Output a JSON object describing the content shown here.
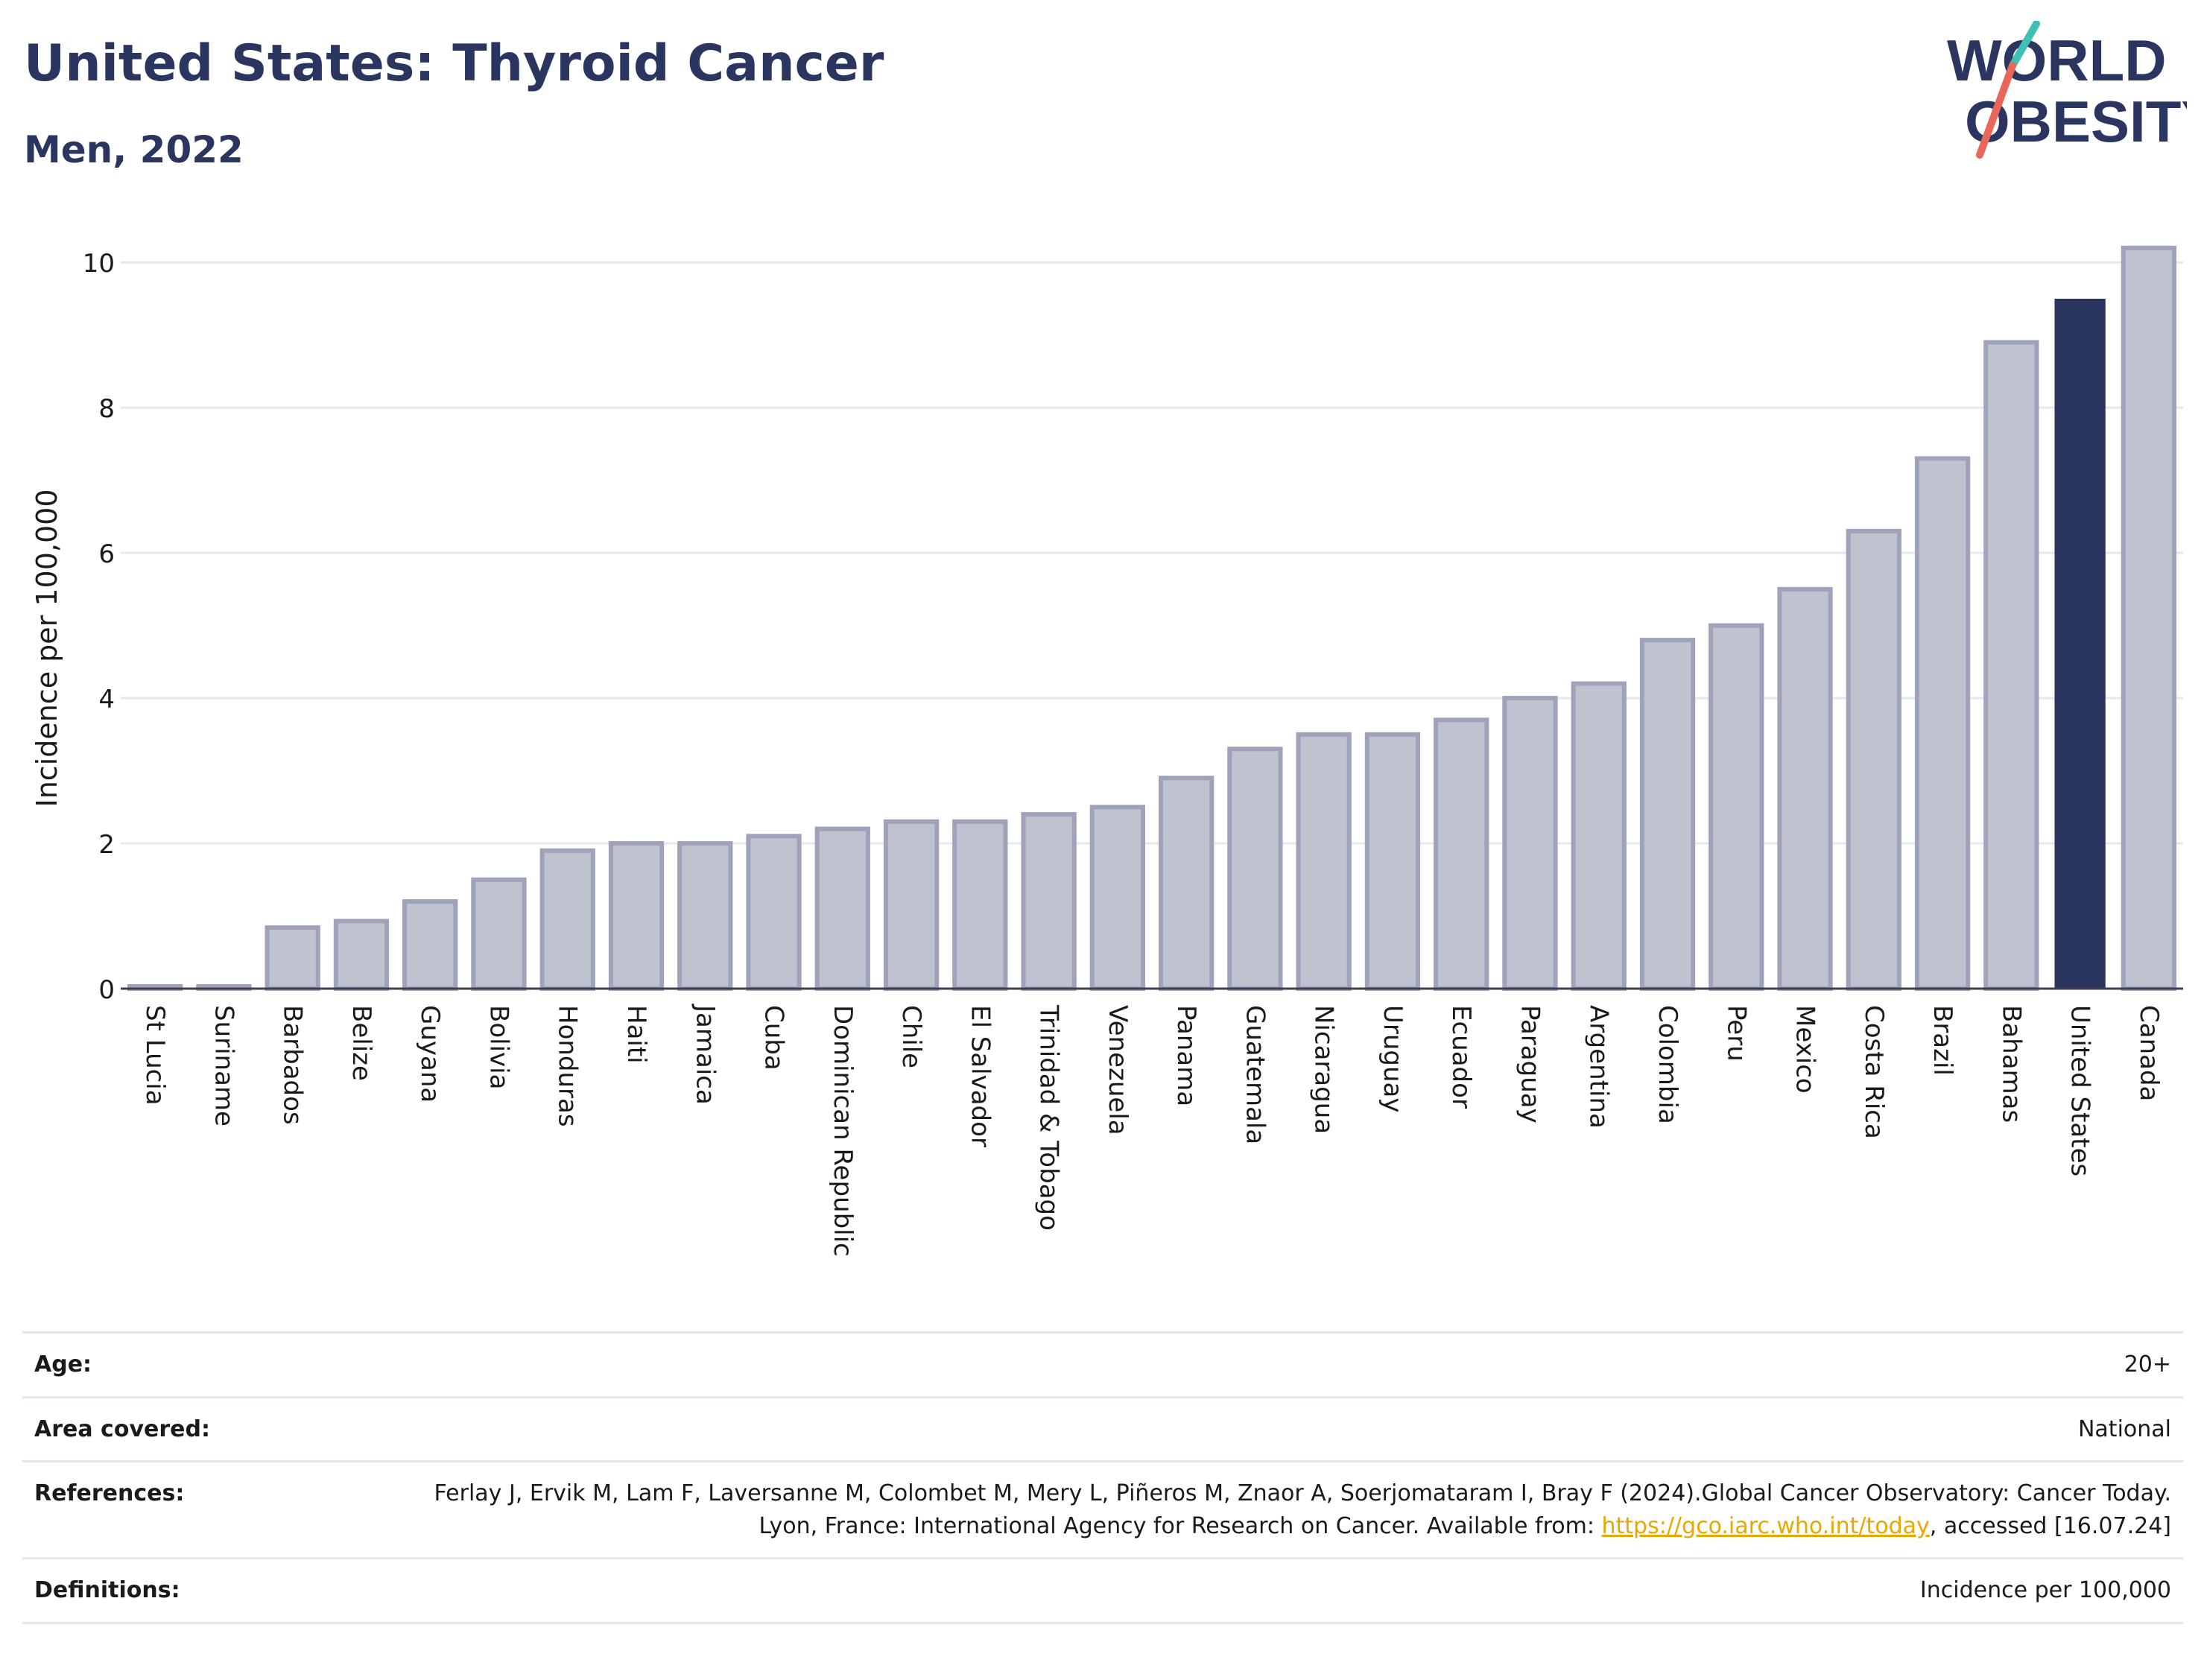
{
  "header": {
    "title": "United States: Thyroid Cancer",
    "subtitle": "Men, 2022"
  },
  "logo": {
    "line1": "WORLD",
    "line2": "OBESITY",
    "slash_colors": [
      "#3fbfb6",
      "#e8675a"
    ]
  },
  "colors": {
    "bar_default": "#bfc3d0",
    "bar_default_border": "#9ea3ba",
    "bar_highlight": "#2b3660",
    "gridline": "#e6e8ef",
    "axis_text": "#1a1a1a",
    "link": "#e8a800"
  },
  "chart_data": {
    "type": "bar",
    "title": "",
    "xlabel": "",
    "ylabel": "Incidence per 100,000",
    "ylim": [
      0,
      10.3
    ],
    "yticks": [
      0,
      2,
      4,
      6,
      8,
      10
    ],
    "grid": true,
    "highlight": "United States",
    "categories": [
      "St Lucia",
      "Suriname",
      "Barbados",
      "Belize",
      "Guyana",
      "Bolivia",
      "Honduras",
      "Haiti",
      "Jamaica",
      "Cuba",
      "Dominican Republic",
      "Chile",
      "El Salvador",
      "Trinidad & Tobago",
      "Venezuela",
      "Panama",
      "Guatemala",
      "Nicaragua",
      "Uruguay",
      "Ecuador",
      "Paraguay",
      "Argentina",
      "Colombia",
      "Peru",
      "Mexico",
      "Costa Rica",
      "Brazil",
      "Bahamas",
      "United States",
      "Canada"
    ],
    "values": [
      0.02,
      0.02,
      0.84,
      0.93,
      1.2,
      1.5,
      1.9,
      2.0,
      2.0,
      2.1,
      2.2,
      2.3,
      2.3,
      2.4,
      2.5,
      2.9,
      3.3,
      3.5,
      3.5,
      3.7,
      4.0,
      4.2,
      4.8,
      5.0,
      5.5,
      6.3,
      7.3,
      8.9,
      9.5,
      10.2
    ]
  },
  "info": {
    "age_label": "Age:",
    "age_value": "20+",
    "area_label": "Area covered:",
    "area_value": "National",
    "references_label": "References:",
    "references_text": "Ferlay J, Ervik M, Lam F, Laversanne M, Colombet M, Mery L, Piñeros M, Znaor A, Soerjomataram I, Bray F (2024).Global Cancer Observatory: Cancer Today. Lyon, France: International Agency for Research on Cancer. Available from: ",
    "references_link": "https://gco.iarc.who.int/today",
    "references_suffix": ", accessed [16.07.24]",
    "definitions_label": "Definitions:",
    "definitions_value": "Incidence per 100,000"
  }
}
